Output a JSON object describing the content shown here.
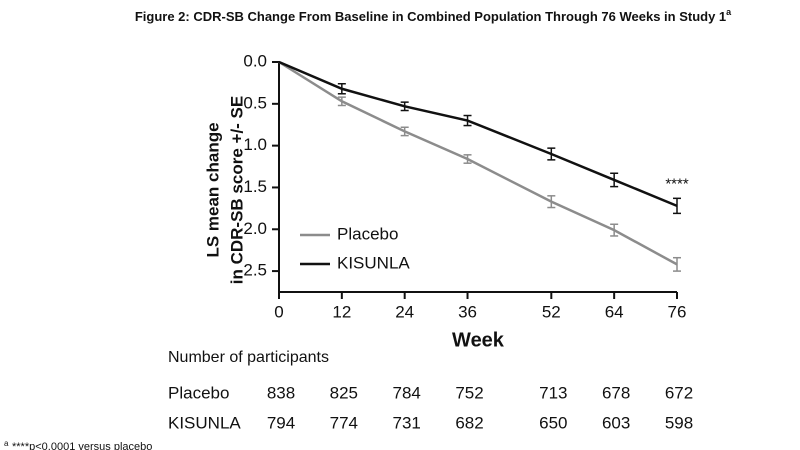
{
  "chart_data": {
    "type": "line",
    "title": "Figure 2: CDR-SB Change From Baseline in Combined Population Through 76 Weeks in Study 1",
    "title_superscript": "a",
    "ylabel": [
      "LS mean change",
      "in CDR-SB score +/- SE"
    ],
    "xlabel": "Week",
    "x": [
      0,
      12,
      24,
      36,
      52,
      64,
      76
    ],
    "xlim": [
      0,
      76
    ],
    "xticks": [
      0,
      12,
      24,
      36,
      52,
      64,
      76
    ],
    "ylim": [
      0,
      2.75
    ],
    "y_inverted": true,
    "yticks": [
      {
        "value": 0,
        "label": "0.0"
      },
      0.5,
      {
        "value": 1,
        "label": "1.0"
      },
      1.5,
      {
        "value": 2,
        "label": "2.0"
      },
      2.5
    ],
    "legend": "lower left",
    "series": [
      {
        "name": "Placebo",
        "color": "#8c8c8c",
        "values": [
          0,
          0.47,
          0.83,
          1.16,
          1.67,
          2.01,
          2.42
        ],
        "errors": [
          null,
          0.05,
          0.05,
          0.05,
          0.07,
          0.07,
          0.08
        ]
      },
      {
        "name": "KISUNLA",
        "color": "#111111",
        "values": [
          0,
          0.32,
          0.53,
          0.7,
          1.1,
          1.41,
          1.72
        ],
        "errors": [
          null,
          0.06,
          0.05,
          0.06,
          0.07,
          0.08,
          0.09
        ]
      }
    ],
    "annotation": "****"
  },
  "table": {
    "title": "Number of participants",
    "rows": [
      [
        "Placebo",
        "838",
        "825",
        "784",
        "752",
        "713",
        "678",
        "672"
      ],
      [
        "KISUNLA",
        "794",
        "774",
        "731",
        "682",
        "650",
        "603",
        "598"
      ]
    ]
  },
  "footnote_marker": "a",
  "footnote": "****p<0.0001 versus placebo"
}
